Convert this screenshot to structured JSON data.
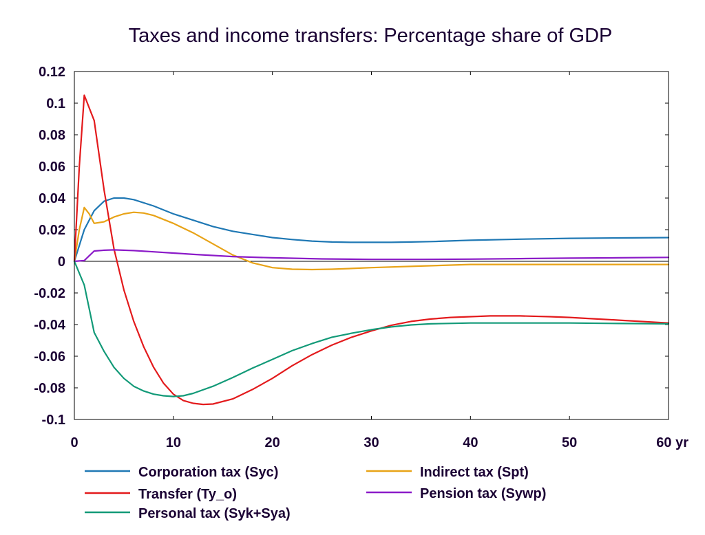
{
  "chart_data": {
    "type": "line",
    "title": "Taxes and income transfers: Percentage share of GDP",
    "xlabel": "",
    "ylabel": "",
    "xlim": [
      0,
      60
    ],
    "ylim": [
      -0.1,
      0.12
    ],
    "x_ticks": [
      0,
      10,
      20,
      30,
      40,
      50,
      60
    ],
    "x_tick_labels": [
      "0",
      "10",
      "20",
      "30",
      "40",
      "50",
      "60 yr"
    ],
    "y_ticks": [
      -0.1,
      -0.08,
      -0.06,
      -0.04,
      -0.02,
      0,
      0.02,
      0.04,
      0.06,
      0.08,
      0.1,
      0.12
    ],
    "y_tick_labels": [
      "-0.1",
      "-0.08",
      "-0.06",
      "-0.04",
      "-0.02",
      "0",
      "0.02",
      "0.04",
      "0.06",
      "0.08",
      "0.1",
      "0.12"
    ],
    "grid": false,
    "legend_position": "bottom",
    "series": [
      {
        "name": "Corporation tax (Syc)",
        "color": "#1f78b4",
        "points": [
          [
            0,
            0
          ],
          [
            1,
            0.02
          ],
          [
            2,
            0.032
          ],
          [
            3,
            0.038
          ],
          [
            4,
            0.04
          ],
          [
            5,
            0.04
          ],
          [
            6,
            0.039
          ],
          [
            8,
            0.035
          ],
          [
            10,
            0.03
          ],
          [
            12,
            0.026
          ],
          [
            14,
            0.022
          ],
          [
            16,
            0.019
          ],
          [
            18,
            0.017
          ],
          [
            20,
            0.015
          ],
          [
            22,
            0.0138
          ],
          [
            24,
            0.0128
          ],
          [
            26,
            0.0122
          ],
          [
            28,
            0.012
          ],
          [
            30,
            0.012
          ],
          [
            32,
            0.012
          ],
          [
            34,
            0.0122
          ],
          [
            36,
            0.0125
          ],
          [
            40,
            0.0133
          ],
          [
            45,
            0.014
          ],
          [
            50,
            0.0145
          ],
          [
            55,
            0.0148
          ],
          [
            60,
            0.015
          ]
        ]
      },
      {
        "name": "Indirect tax (Spt)",
        "color": "#e8a317",
        "points": [
          [
            0,
            0
          ],
          [
            0.5,
            0.02
          ],
          [
            1,
            0.034
          ],
          [
            1.5,
            0.03
          ],
          [
            2,
            0.024
          ],
          [
            3,
            0.025
          ],
          [
            4,
            0.028
          ],
          [
            5,
            0.03
          ],
          [
            6,
            0.031
          ],
          [
            7,
            0.0305
          ],
          [
            8,
            0.029
          ],
          [
            10,
            0.024
          ],
          [
            12,
            0.018
          ],
          [
            14,
            0.011
          ],
          [
            16,
            0.004
          ],
          [
            18,
            -0.001
          ],
          [
            20,
            -0.004
          ],
          [
            22,
            -0.005
          ],
          [
            24,
            -0.0052
          ],
          [
            26,
            -0.005
          ],
          [
            28,
            -0.0045
          ],
          [
            30,
            -0.004
          ],
          [
            35,
            -0.003
          ],
          [
            40,
            -0.002
          ],
          [
            45,
            -0.002
          ],
          [
            50,
            -0.002
          ],
          [
            55,
            -0.002
          ],
          [
            60,
            -0.002
          ]
        ]
      },
      {
        "name": "Transfer (Ty_o)",
        "color": "#e31a1c",
        "points": [
          [
            0,
            0
          ],
          [
            0.5,
            0.06
          ],
          [
            1,
            0.105
          ],
          [
            2,
            0.089
          ],
          [
            3,
            0.045
          ],
          [
            4,
            0.008
          ],
          [
            5,
            -0.018
          ],
          [
            6,
            -0.038
          ],
          [
            7,
            -0.054
          ],
          [
            8,
            -0.067
          ],
          [
            9,
            -0.077
          ],
          [
            10,
            -0.084
          ],
          [
            11,
            -0.088
          ],
          [
            12,
            -0.0898
          ],
          [
            13,
            -0.0905
          ],
          [
            14,
            -0.0902
          ],
          [
            16,
            -0.087
          ],
          [
            18,
            -0.081
          ],
          [
            20,
            -0.074
          ],
          [
            22,
            -0.066
          ],
          [
            24,
            -0.059
          ],
          [
            26,
            -0.053
          ],
          [
            28,
            -0.048
          ],
          [
            30,
            -0.044
          ],
          [
            32,
            -0.0405
          ],
          [
            34,
            -0.038
          ],
          [
            36,
            -0.0365
          ],
          [
            38,
            -0.0355
          ],
          [
            40,
            -0.035
          ],
          [
            42,
            -0.0345
          ],
          [
            45,
            -0.0345
          ],
          [
            48,
            -0.035
          ],
          [
            50,
            -0.0355
          ],
          [
            55,
            -0.0372
          ],
          [
            60,
            -0.039
          ]
        ]
      },
      {
        "name": "Pension tax (Sywp)",
        "color": "#8b1ac8",
        "points": [
          [
            0,
            0
          ],
          [
            1,
            0.0005
          ],
          [
            2,
            0.0065
          ],
          [
            3,
            0.007
          ],
          [
            4,
            0.0072
          ],
          [
            6,
            0.0068
          ],
          [
            8,
            0.006
          ],
          [
            10,
            0.0052
          ],
          [
            12,
            0.0044
          ],
          [
            14,
            0.0037
          ],
          [
            16,
            0.003
          ],
          [
            20,
            0.0022
          ],
          [
            25,
            0.0015
          ],
          [
            30,
            0.0012
          ],
          [
            35,
            0.0012
          ],
          [
            40,
            0.0014
          ],
          [
            45,
            0.0017
          ],
          [
            50,
            0.002
          ],
          [
            55,
            0.0022
          ],
          [
            60,
            0.0025
          ]
        ]
      },
      {
        "name": "Personal tax (Syk+Sya)",
        "color": "#129a78",
        "points": [
          [
            0,
            0
          ],
          [
            1,
            -0.015
          ],
          [
            2,
            -0.045
          ],
          [
            3,
            -0.057
          ],
          [
            4,
            -0.067
          ],
          [
            5,
            -0.074
          ],
          [
            6,
            -0.079
          ],
          [
            7,
            -0.082
          ],
          [
            8,
            -0.084
          ],
          [
            9,
            -0.085
          ],
          [
            10,
            -0.0855
          ],
          [
            11,
            -0.085
          ],
          [
            12,
            -0.0835
          ],
          [
            14,
            -0.079
          ],
          [
            16,
            -0.0735
          ],
          [
            18,
            -0.0675
          ],
          [
            20,
            -0.062
          ],
          [
            22,
            -0.0565
          ],
          [
            24,
            -0.052
          ],
          [
            26,
            -0.048
          ],
          [
            28,
            -0.0455
          ],
          [
            30,
            -0.0432
          ],
          [
            32,
            -0.0415
          ],
          [
            34,
            -0.0402
          ],
          [
            36,
            -0.0395
          ],
          [
            40,
            -0.039
          ],
          [
            45,
            -0.039
          ],
          [
            50,
            -0.039
          ],
          [
            55,
            -0.0393
          ],
          [
            60,
            -0.0395
          ]
        ]
      }
    ]
  }
}
